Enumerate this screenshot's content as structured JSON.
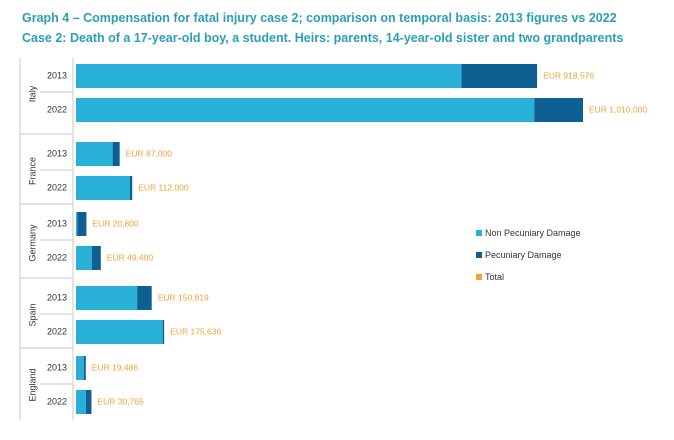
{
  "header": {
    "title": "Graph 4 – Compensation for fatal injury case 2; comparison on temporal basis: 2013 figures vs 2022",
    "subtitle": "Case 2: Death of a 17-year-old boy, a student. Heirs: parents, 14-year-old sister and two grandparents"
  },
  "legend": {
    "items": [
      {
        "label": "Non Pecuniary Damage",
        "color": "#29b0d8"
      },
      {
        "label": "Pecuniary Damage",
        "color": "#0e5f92"
      },
      {
        "label": "Total",
        "color": "#f2a23a"
      }
    ]
  },
  "colors": {
    "non_pecuniary": "#29b0d8",
    "pecuniary": "#0e5f92",
    "total_label": "#f2a23a",
    "divider": "#c8c8c8"
  },
  "chart_data": {
    "type": "bar",
    "orientation": "horizontal",
    "stacked": true,
    "title": "Graph 4 – Compensation for fatal injury case 2; comparison on temporal basis: 2013 figures vs 2022",
    "subtitle": "Case 2: Death of a 17-year-old boy, a student. Heirs: parents, 14-year-old sister and two grandparents",
    "xlim": [
      0,
      1070000
    ],
    "legend_position": "right",
    "series": [
      {
        "name": "Non Pecuniary Damage",
        "color": "#29b0d8"
      },
      {
        "name": "Pecuniary Damage",
        "color": "#0e5f92"
      },
      {
        "name": "Total",
        "color": "#f2a23a"
      }
    ],
    "groups": [
      {
        "country": "Italy",
        "bars": [
          {
            "year": "2013",
            "non_pecuniary": 768000,
            "pecuniary": 150576,
            "total": 918576,
            "label": "EUR 918,576"
          },
          {
            "year": "2022",
            "non_pecuniary": 913000,
            "pecuniary": 97000,
            "total": 1010000,
            "label": "EUR 1,010,000"
          }
        ]
      },
      {
        "country": "France",
        "bars": [
          {
            "year": "2013",
            "non_pecuniary": 73000,
            "pecuniary": 14000,
            "total": 87000,
            "label": "EUR 87,000"
          },
          {
            "year": "2022",
            "non_pecuniary": 107500,
            "pecuniary": 4500,
            "total": 112000,
            "label": "EUR 112,000"
          }
        ]
      },
      {
        "country": "Germany",
        "bars": [
          {
            "year": "2013",
            "non_pecuniary": 2500,
            "pecuniary": 18300,
            "total": 20800,
            "label": "EUR 20,800"
          },
          {
            "year": "2022",
            "non_pecuniary": 31400,
            "pecuniary": 18000,
            "total": 49400,
            "label": "EUR 49,400"
          }
        ]
      },
      {
        "country": "Spain",
        "bars": [
          {
            "year": "2013",
            "non_pecuniary": 121800,
            "pecuniary": 29019,
            "total": 150819,
            "label": "EUR 150,819"
          },
          {
            "year": "2022",
            "non_pecuniary": 172636,
            "pecuniary": 3000,
            "total": 175636,
            "label": "EUR 175,636"
          }
        ]
      },
      {
        "country": "England",
        "bars": [
          {
            "year": "2013",
            "non_pecuniary": 15486,
            "pecuniary": 4000,
            "total": 19486,
            "label": "EUR 19,486"
          },
          {
            "year": "2022",
            "non_pecuniary": 19765,
            "pecuniary": 11000,
            "total": 30765,
            "label": "EUR 30,765"
          }
        ]
      }
    ]
  }
}
